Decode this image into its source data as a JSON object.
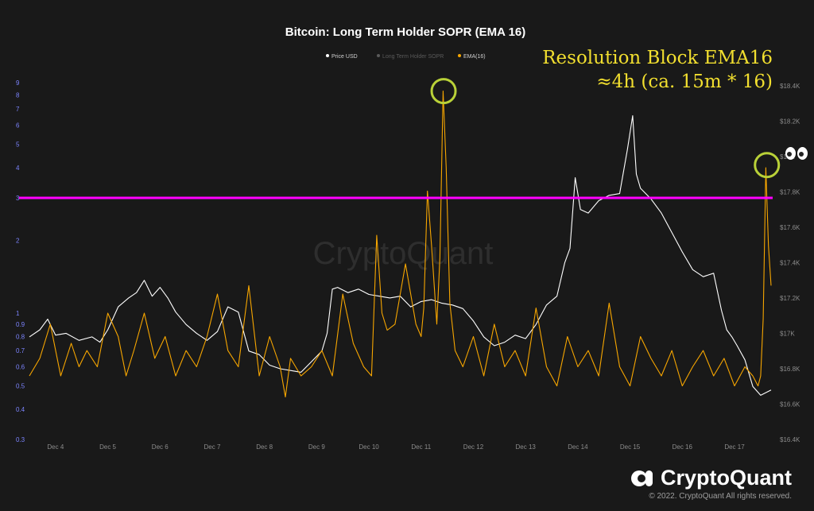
{
  "chart_data": {
    "type": "line",
    "title": "Bitcoin: Long Term Holder SOPR (EMA 16)",
    "legend": [
      {
        "label": "Price USD",
        "color": "#ffffff"
      },
      {
        "label": "Long Term Holder SOPR",
        "color": "#5a5a5a"
      },
      {
        "label": "EMA(16)",
        "color": "#f7a600"
      }
    ],
    "legend_position": "top-center",
    "x_labels": [
      "Dec 4",
      "Dec 5",
      "Dec 6",
      "Dec 7",
      "Dec 8",
      "Dec 9",
      "Dec 10",
      "Dec 11",
      "Dec 12",
      "Dec 13",
      "Dec 14",
      "Dec 15",
      "Dec 16",
      "Dec 17"
    ],
    "x_range": [
      3.5,
      17.7
    ],
    "left_axis": {
      "scale": "log",
      "range": [
        0.3,
        10
      ],
      "ticks": [
        0.3,
        0.4,
        0.5,
        0.6,
        0.7,
        0.8,
        0.9,
        1,
        2,
        3,
        4,
        5,
        6,
        7,
        8,
        9
      ],
      "tick_labels": [
        "0.3",
        "0.4",
        "0.5",
        "0.6",
        "0.7",
        "0.8",
        "0.9",
        "1",
        "2",
        "3",
        "4",
        "5",
        "6",
        "7",
        "8",
        "9"
      ]
    },
    "right_axis": {
      "scale": "linear",
      "range": [
        16400,
        18480
      ],
      "ticks": [
        16400,
        16600,
        16800,
        17000,
        17200,
        17400,
        17600,
        17800,
        18000,
        18200,
        18400
      ],
      "tick_labels": [
        "$16.4K",
        "$16.6K",
        "$16.8K",
        "$17K",
        "$17.2K",
        "$17.4K",
        "$17.6K",
        "$17.8K",
        "$18K",
        "$18.2K",
        "$18.4K"
      ]
    },
    "reference_line": {
      "value": 3,
      "axis": "left",
      "color": "#ff00ff"
    },
    "highlight_circles": [
      {
        "x": 11.43,
        "y": 8.3,
        "color": "#b9d138"
      },
      {
        "x": 17.62,
        "y": 4.1,
        "color": "#b9d138"
      }
    ],
    "series": [
      {
        "name": "Price USD",
        "axis": "right",
        "color": "#ffffff",
        "x": [
          3.5,
          3.7,
          3.85,
          4.0,
          4.2,
          4.45,
          4.7,
          4.85,
          5.0,
          5.2,
          5.4,
          5.55,
          5.7,
          5.85,
          6.0,
          6.15,
          6.3,
          6.5,
          6.7,
          6.9,
          7.1,
          7.3,
          7.5,
          7.7,
          7.9,
          8.1,
          8.3,
          8.5,
          8.7,
          8.9,
          9.1,
          9.2,
          9.3,
          9.4,
          9.6,
          9.8,
          10.0,
          10.2,
          10.4,
          10.6,
          10.8,
          11.0,
          11.2,
          11.4,
          11.6,
          11.8,
          12.0,
          12.2,
          12.4,
          12.6,
          12.8,
          13.0,
          13.2,
          13.4,
          13.6,
          13.75,
          13.85,
          13.95,
          14.05,
          14.2,
          14.4,
          14.6,
          14.8,
          14.95,
          15.05,
          15.12,
          15.2,
          15.4,
          15.6,
          15.8,
          16.0,
          16.2,
          16.4,
          16.6,
          16.75,
          16.85,
          16.95,
          17.05,
          17.2,
          17.35,
          17.5,
          17.7
        ],
        "values": [
          16980,
          17020,
          17080,
          16990,
          17000,
          16960,
          16980,
          16950,
          17020,
          17150,
          17200,
          17230,
          17300,
          17210,
          17260,
          17200,
          17120,
          17050,
          17000,
          16960,
          17010,
          17150,
          17120,
          16900,
          16880,
          16820,
          16800,
          16790,
          16780,
          16840,
          16900,
          17000,
          17250,
          17260,
          17230,
          17250,
          17220,
          17210,
          17200,
          17210,
          17150,
          17180,
          17190,
          17170,
          17160,
          17140,
          17070,
          16980,
          16930,
          16950,
          16990,
          16970,
          17050,
          17160,
          17210,
          17400,
          17480,
          17880,
          17700,
          17680,
          17750,
          17780,
          17790,
          18040,
          18230,
          17900,
          17820,
          17760,
          17680,
          17570,
          17460,
          17360,
          17320,
          17340,
          17130,
          17020,
          16980,
          16930,
          16850,
          16700,
          16650,
          16680
        ]
      },
      {
        "name": "EMA(16)",
        "axis": "left",
        "color": "#f7a600",
        "x": [
          3.5,
          3.7,
          3.9,
          4.1,
          4.3,
          4.45,
          4.6,
          4.8,
          5.0,
          5.2,
          5.35,
          5.5,
          5.7,
          5.9,
          6.1,
          6.3,
          6.5,
          6.7,
          6.9,
          7.1,
          7.3,
          7.5,
          7.7,
          7.9,
          8.1,
          8.3,
          8.4,
          8.5,
          8.7,
          8.9,
          9.1,
          9.3,
          9.5,
          9.7,
          9.9,
          10.05,
          10.15,
          10.25,
          10.35,
          10.5,
          10.7,
          10.9,
          11.0,
          11.05,
          11.12,
          11.2,
          11.3,
          11.36,
          11.42,
          11.48,
          11.55,
          11.65,
          11.8,
          12.0,
          12.2,
          12.4,
          12.6,
          12.8,
          13.0,
          13.2,
          13.4,
          13.6,
          13.8,
          14.0,
          14.2,
          14.4,
          14.6,
          14.8,
          15.0,
          15.2,
          15.4,
          15.6,
          15.8,
          16.0,
          16.2,
          16.4,
          16.6,
          16.8,
          17.0,
          17.2,
          17.35,
          17.45,
          17.5,
          17.55,
          17.6,
          17.65,
          17.7
        ],
        "values": [
          0.55,
          0.65,
          0.9,
          0.55,
          0.75,
          0.6,
          0.7,
          0.6,
          1.0,
          0.8,
          0.55,
          0.7,
          1.0,
          0.65,
          0.8,
          0.55,
          0.7,
          0.6,
          0.8,
          1.2,
          0.7,
          0.6,
          1.3,
          0.55,
          0.8,
          0.6,
          0.45,
          0.65,
          0.55,
          0.6,
          0.7,
          0.55,
          1.2,
          0.75,
          0.6,
          0.55,
          2.1,
          1.0,
          0.85,
          0.9,
          1.6,
          0.9,
          0.8,
          1.05,
          3.2,
          1.9,
          0.9,
          1.7,
          8.3,
          4.0,
          1.1,
          0.7,
          0.6,
          0.8,
          0.55,
          0.9,
          0.6,
          0.7,
          0.55,
          1.05,
          0.6,
          0.5,
          0.8,
          0.6,
          0.7,
          0.55,
          1.1,
          0.6,
          0.5,
          0.8,
          0.65,
          0.55,
          0.7,
          0.5,
          0.6,
          0.7,
          0.55,
          0.65,
          0.5,
          0.6,
          0.55,
          0.5,
          0.55,
          0.95,
          4.0,
          1.9,
          1.3
        ]
      }
    ]
  },
  "watermark": "CryptoQuant",
  "annotation": {
    "line1": "Resolution Block EMA16",
    "line2": "≈4h (ca. 15m * 16)"
  },
  "footer": {
    "brand": "CryptoQuant",
    "copyright": "© 2022. CryptoQuant All rights reserved."
  },
  "icons": {
    "eyes": "eyes-emoji",
    "brand_logo": "cryptoquant-logo-icon"
  }
}
